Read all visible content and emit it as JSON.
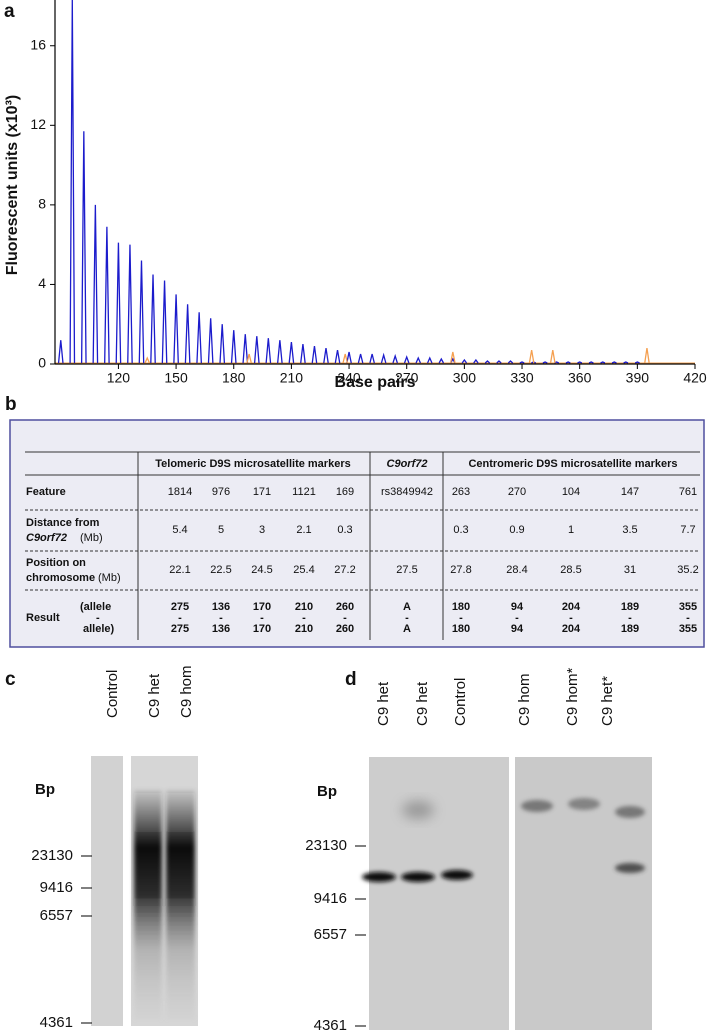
{
  "panel_a": {
    "label": "a",
    "chart": {
      "type": "line",
      "xlabel": "Base pairs",
      "ylabel": "Fluorescent units (x10³)",
      "xlim": [
        87,
        420
      ],
      "ylim": [
        0,
        18.3
      ],
      "xticks": [
        120,
        150,
        180,
        210,
        240,
        270,
        300,
        330,
        360,
        390,
        420
      ],
      "yticks": [
        0,
        4,
        8,
        12,
        16
      ],
      "series": [
        {
          "color": "#1c1ccc",
          "x": [
            90,
            96,
            102,
            108,
            114,
            120,
            126,
            132,
            138,
            144,
            150,
            156,
            162,
            168,
            174,
            180,
            186,
            192,
            198,
            204,
            210,
            216,
            222,
            228,
            234,
            240,
            246,
            252,
            258,
            264,
            270,
            276,
            282,
            288,
            294,
            300,
            306,
            312,
            318,
            324,
            330,
            336,
            342,
            348,
            354,
            360,
            366,
            372,
            378,
            384,
            390
          ],
          "values": [
            1.2,
            18.3,
            11.7,
            8.0,
            6.9,
            6.1,
            6.0,
            5.2,
            4.5,
            4.2,
            3.5,
            3.0,
            2.6,
            2.3,
            2.0,
            1.7,
            1.5,
            1.4,
            1.3,
            1.2,
            1.1,
            1.0,
            0.9,
            0.8,
            0.7,
            0.6,
            0.5,
            0.5,
            0.45,
            0.4,
            0.35,
            0.3,
            0.3,
            0.25,
            0.25,
            0.2,
            0.2,
            0.15,
            0.15,
            0.15,
            0.1,
            0.1,
            0.1,
            0.1,
            0.1,
            0.1,
            0.1,
            0.1,
            0.1,
            0.1,
            0.1
          ]
        },
        {
          "color": "#f5a050",
          "x": [
            135,
            188,
            238,
            294,
            335,
            346,
            395
          ],
          "values": [
            0.3,
            0.5,
            0.5,
            0.6,
            0.7,
            0.7,
            0.8
          ]
        }
      ]
    }
  },
  "panel_b": {
    "label": "b",
    "group_headers": [
      "Telomeric D9S microsatellite markers",
      "C9orf72",
      "Centromeric D9S microsatellite markers"
    ],
    "rows": {
      "feature": {
        "label": "Feature",
        "cells": [
          "1814",
          "976",
          "171",
          "1121",
          "169",
          "rs3849942",
          "263",
          "270",
          "104",
          "147",
          "761"
        ]
      },
      "distance": {
        "label": [
          "Distance from",
          "C9orf72",
          "(Mb)"
        ],
        "cells": [
          "5.4",
          "5",
          "3",
          "2.1",
          "0.3",
          null,
          "0.3",
          "0.9",
          "1",
          "3.5",
          "7.7"
        ]
      },
      "position": {
        "label": [
          "Position on",
          "chromosome",
          "(Mb)"
        ],
        "cells": [
          "22.1",
          "22.5",
          "24.5",
          "25.4",
          "27.2",
          "27.5",
          "27.8",
          "28.4",
          "28.5",
          "31",
          "35.2"
        ]
      },
      "result": {
        "label": [
          "Result",
          "(allele",
          "-",
          "allele)"
        ],
        "allele_1": [
          "275",
          "136",
          "170",
          "210",
          "260",
          "A",
          "180",
          "94",
          "204",
          "189",
          "355"
        ],
        "separator": "-",
        "allele_2": [
          "275",
          "136",
          "170",
          "210",
          "260",
          "A",
          "180",
          "94",
          "204",
          "189",
          "355"
        ]
      }
    }
  },
  "panel_c": {
    "label": "c",
    "lanes": [
      "Control",
      "C9 het",
      "C9 hom"
    ],
    "marker_title": "Bp",
    "markers": [
      "23130",
      "9416",
      "6557",
      "4361"
    ]
  },
  "panel_d": {
    "label": "d",
    "lanes": [
      "C9 het",
      "C9 het",
      "Control",
      "C9 hom",
      "C9 hom*",
      "C9 het*"
    ],
    "marker_title": "Bp",
    "markers": [
      "23130",
      "9416",
      "6557",
      "4361"
    ]
  }
}
